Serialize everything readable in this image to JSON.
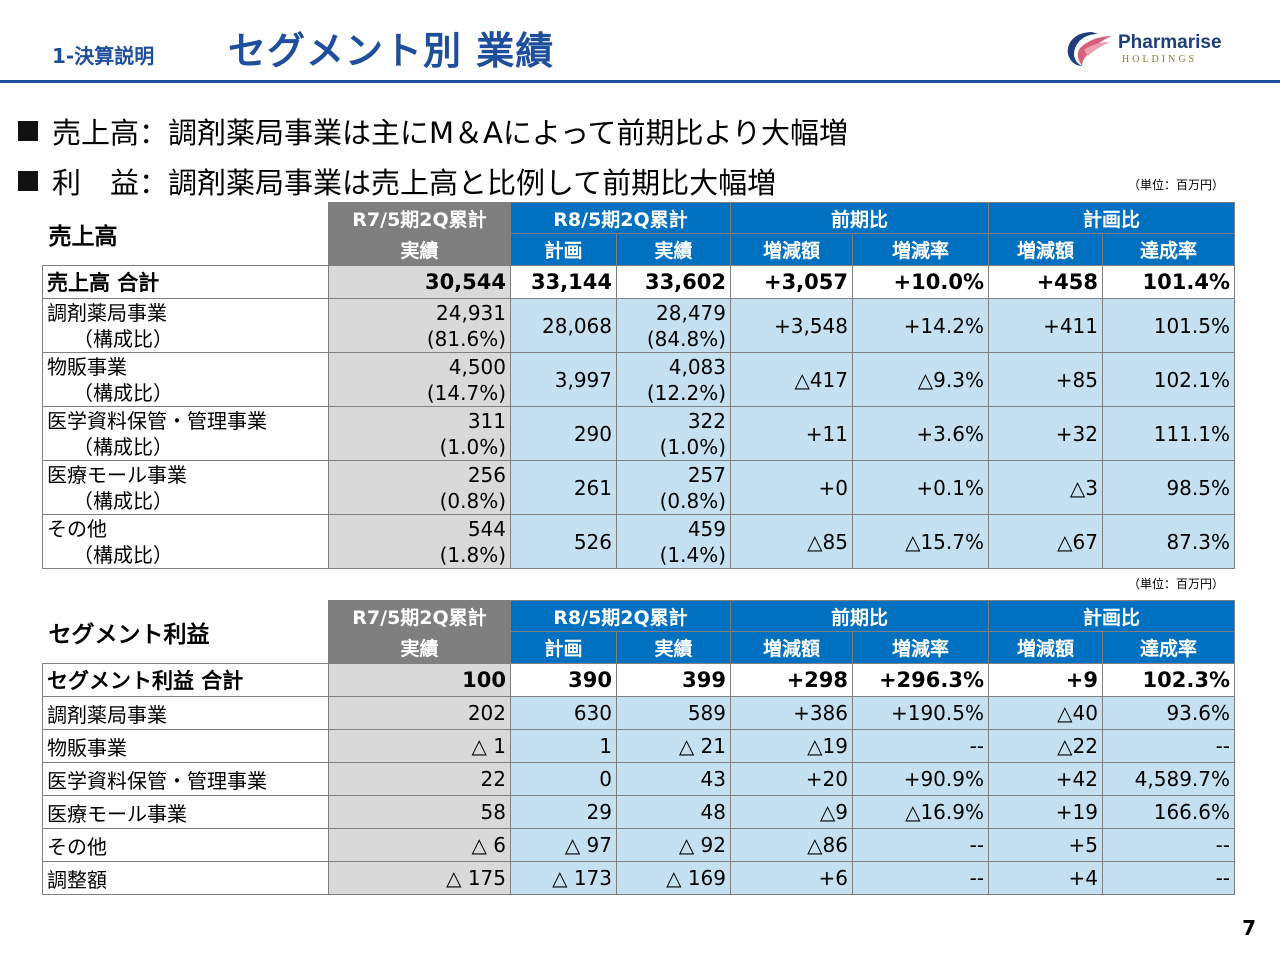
{
  "header": {
    "section_label": "1-決算説明",
    "title": "セグメント別 業績",
    "logo_name": "Pharmarise",
    "logo_sub": "HOLDINGS"
  },
  "bullets": [
    "売上高：調剤薬局事業は主にM＆Aによって前期比より大幅増",
    "利　益：調剤薬局事業は売上高と比例して前期比大幅増"
  ],
  "unit_note": "（単位：百万円）",
  "col_headers": {
    "prev_group": "R7/5期2Q累計",
    "curr_group": "R8/5期2Q累計",
    "yoy_group": "前期比",
    "plan_group": "計画比",
    "actual": "実績",
    "plan": "計画",
    "actual2": "実績",
    "diff": "増減額",
    "rate": "増減率",
    "diff2": "増減額",
    "achieve": "達成率"
  },
  "sales": {
    "title": "売上高",
    "total": {
      "label": "売上高 合計",
      "prev": "30,544",
      "plan": "33,144",
      "actual": "33,602",
      "yoy_diff": "+3,057",
      "yoy_rate": "+10.0%",
      "plan_diff": "+458",
      "achieve": "101.4%"
    },
    "rows": [
      {
        "label": "調剤薬局事業",
        "sub": "（構成比）",
        "prev": "24,931",
        "prev_share": "(81.6%)",
        "plan": "28,068",
        "actual": "28,479",
        "actual_share": "(84.8%)",
        "yoy_diff": "+3,548",
        "yoy_rate": "+14.2%",
        "plan_diff": "+411",
        "achieve": "101.5%"
      },
      {
        "label": "物販事業",
        "sub": "（構成比）",
        "prev": "4,500",
        "prev_share": "(14.7%)",
        "plan": "3,997",
        "actual": "4,083",
        "actual_share": "(12.2%)",
        "yoy_diff": "△417",
        "yoy_rate": "△9.3%",
        "plan_diff": "+85",
        "achieve": "102.1%"
      },
      {
        "label": "医学資料保管・管理事業",
        "sub": "（構成比）",
        "prev": "311",
        "prev_share": "(1.0%)",
        "plan": "290",
        "actual": "322",
        "actual_share": "(1.0%)",
        "yoy_diff": "+11",
        "yoy_rate": "+3.6%",
        "plan_diff": "+32",
        "achieve": "111.1%"
      },
      {
        "label": "医療モール事業",
        "sub": "（構成比）",
        "prev": "256",
        "prev_share": "(0.8%)",
        "plan": "261",
        "actual": "257",
        "actual_share": "(0.8%)",
        "yoy_diff": "+0",
        "yoy_rate": "+0.1%",
        "plan_diff": "△3",
        "achieve": "98.5%"
      },
      {
        "label": "その他",
        "sub": "（構成比）",
        "prev": "544",
        "prev_share": "(1.8%)",
        "plan": "526",
        "actual": "459",
        "actual_share": "(1.4%)",
        "yoy_diff": "△85",
        "yoy_rate": "△15.7%",
        "plan_diff": "△67",
        "achieve": "87.3%"
      }
    ]
  },
  "profit": {
    "title": "セグメント利益",
    "total": {
      "label": "セグメント利益 合計",
      "prev": "100",
      "plan": "390",
      "actual": "399",
      "yoy_diff": "+298",
      "yoy_rate": "+296.3%",
      "plan_diff": "+9",
      "achieve": "102.3%"
    },
    "rows": [
      {
        "label": "調剤薬局事業",
        "prev": "202",
        "plan": "630",
        "actual": "589",
        "yoy_diff": "+386",
        "yoy_rate": "+190.5%",
        "plan_diff": "△40",
        "achieve": "93.6%"
      },
      {
        "label": "物販事業",
        "prev": "△ 1",
        "plan": "1",
        "actual": "△ 21",
        "yoy_diff": "△19",
        "yoy_rate": "--",
        "plan_diff": "△22",
        "achieve": "--"
      },
      {
        "label": "医学資料保管・管理事業",
        "prev": "22",
        "plan": "0",
        "actual": "43",
        "yoy_diff": "+20",
        "yoy_rate": "+90.9%",
        "plan_diff": "+42",
        "achieve": "4,589.7%"
      },
      {
        "label": "医療モール事業",
        "prev": "58",
        "plan": "29",
        "actual": "48",
        "yoy_diff": "△9",
        "yoy_rate": "△16.9%",
        "plan_diff": "+19",
        "achieve": "166.6%"
      },
      {
        "label": "その他",
        "prev": "△ 6",
        "plan": "△ 97",
        "actual": "△ 92",
        "yoy_diff": "△86",
        "yoy_rate": "--",
        "plan_diff": "+5",
        "achieve": "--"
      },
      {
        "label": "調整額",
        "prev": "△ 175",
        "plan": "△ 173",
        "actual": "△ 169",
        "yoy_diff": "+6",
        "yoy_rate": "--",
        "plan_diff": "+4",
        "achieve": "--"
      }
    ]
  },
  "page_number": "7"
}
